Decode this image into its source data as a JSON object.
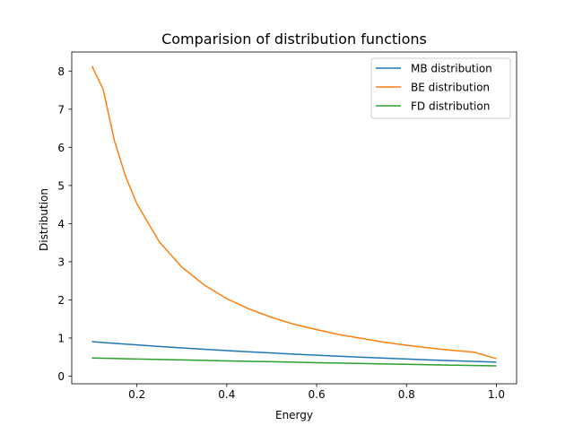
{
  "chart_data": {
    "type": "line",
    "title": "Comparision of distribution functions",
    "xlabel": "Energy",
    "ylabel": "Distribution",
    "xlim": [
      0.055,
      1.045
    ],
    "ylim": [
      -0.2,
      8.5
    ],
    "xticks": [
      0.2,
      0.4,
      0.6,
      0.8,
      1.0
    ],
    "xtick_labels": [
      "0.2",
      "0.4",
      "0.6",
      "0.8",
      "1.0"
    ],
    "yticks": [
      0,
      1,
      2,
      3,
      4,
      5,
      6,
      7,
      8
    ],
    "ytick_labels": [
      "0",
      "1",
      "2",
      "3",
      "4",
      "5",
      "6",
      "7",
      "8"
    ],
    "grid": false,
    "legend_position": "top-right",
    "x": [
      0.1,
      0.125,
      0.15,
      0.175,
      0.2,
      0.25,
      0.3,
      0.35,
      0.4,
      0.45,
      0.5,
      0.55,
      0.6,
      0.65,
      0.7,
      0.75,
      0.8,
      0.85,
      0.9,
      0.95,
      1.0
    ],
    "series": [
      {
        "name": "MB distribution",
        "color": "#1f77b4",
        "values": [
          0.905,
          0.882,
          0.861,
          0.839,
          0.819,
          0.779,
          0.741,
          0.705,
          0.67,
          0.638,
          0.607,
          0.577,
          0.549,
          0.522,
          0.497,
          0.472,
          0.449,
          0.427,
          0.407,
          0.387,
          0.368
        ]
      },
      {
        "name": "BE distribution",
        "color": "#ff7f0e",
        "values": [
          8.13,
          7.52,
          6.17,
          5.23,
          4.52,
          3.52,
          2.86,
          2.39,
          2.03,
          1.76,
          1.54,
          1.36,
          1.22,
          1.09,
          0.99,
          0.89,
          0.81,
          0.74,
          0.68,
          0.63,
          0.46
        ]
      },
      {
        "name": "FD distribution",
        "color": "#2ca02c",
        "values": [
          0.475,
          0.469,
          0.463,
          0.456,
          0.45,
          0.438,
          0.426,
          0.413,
          0.401,
          0.389,
          0.378,
          0.366,
          0.354,
          0.343,
          0.332,
          0.321,
          0.31,
          0.299,
          0.289,
          0.279,
          0.269
        ]
      }
    ]
  }
}
